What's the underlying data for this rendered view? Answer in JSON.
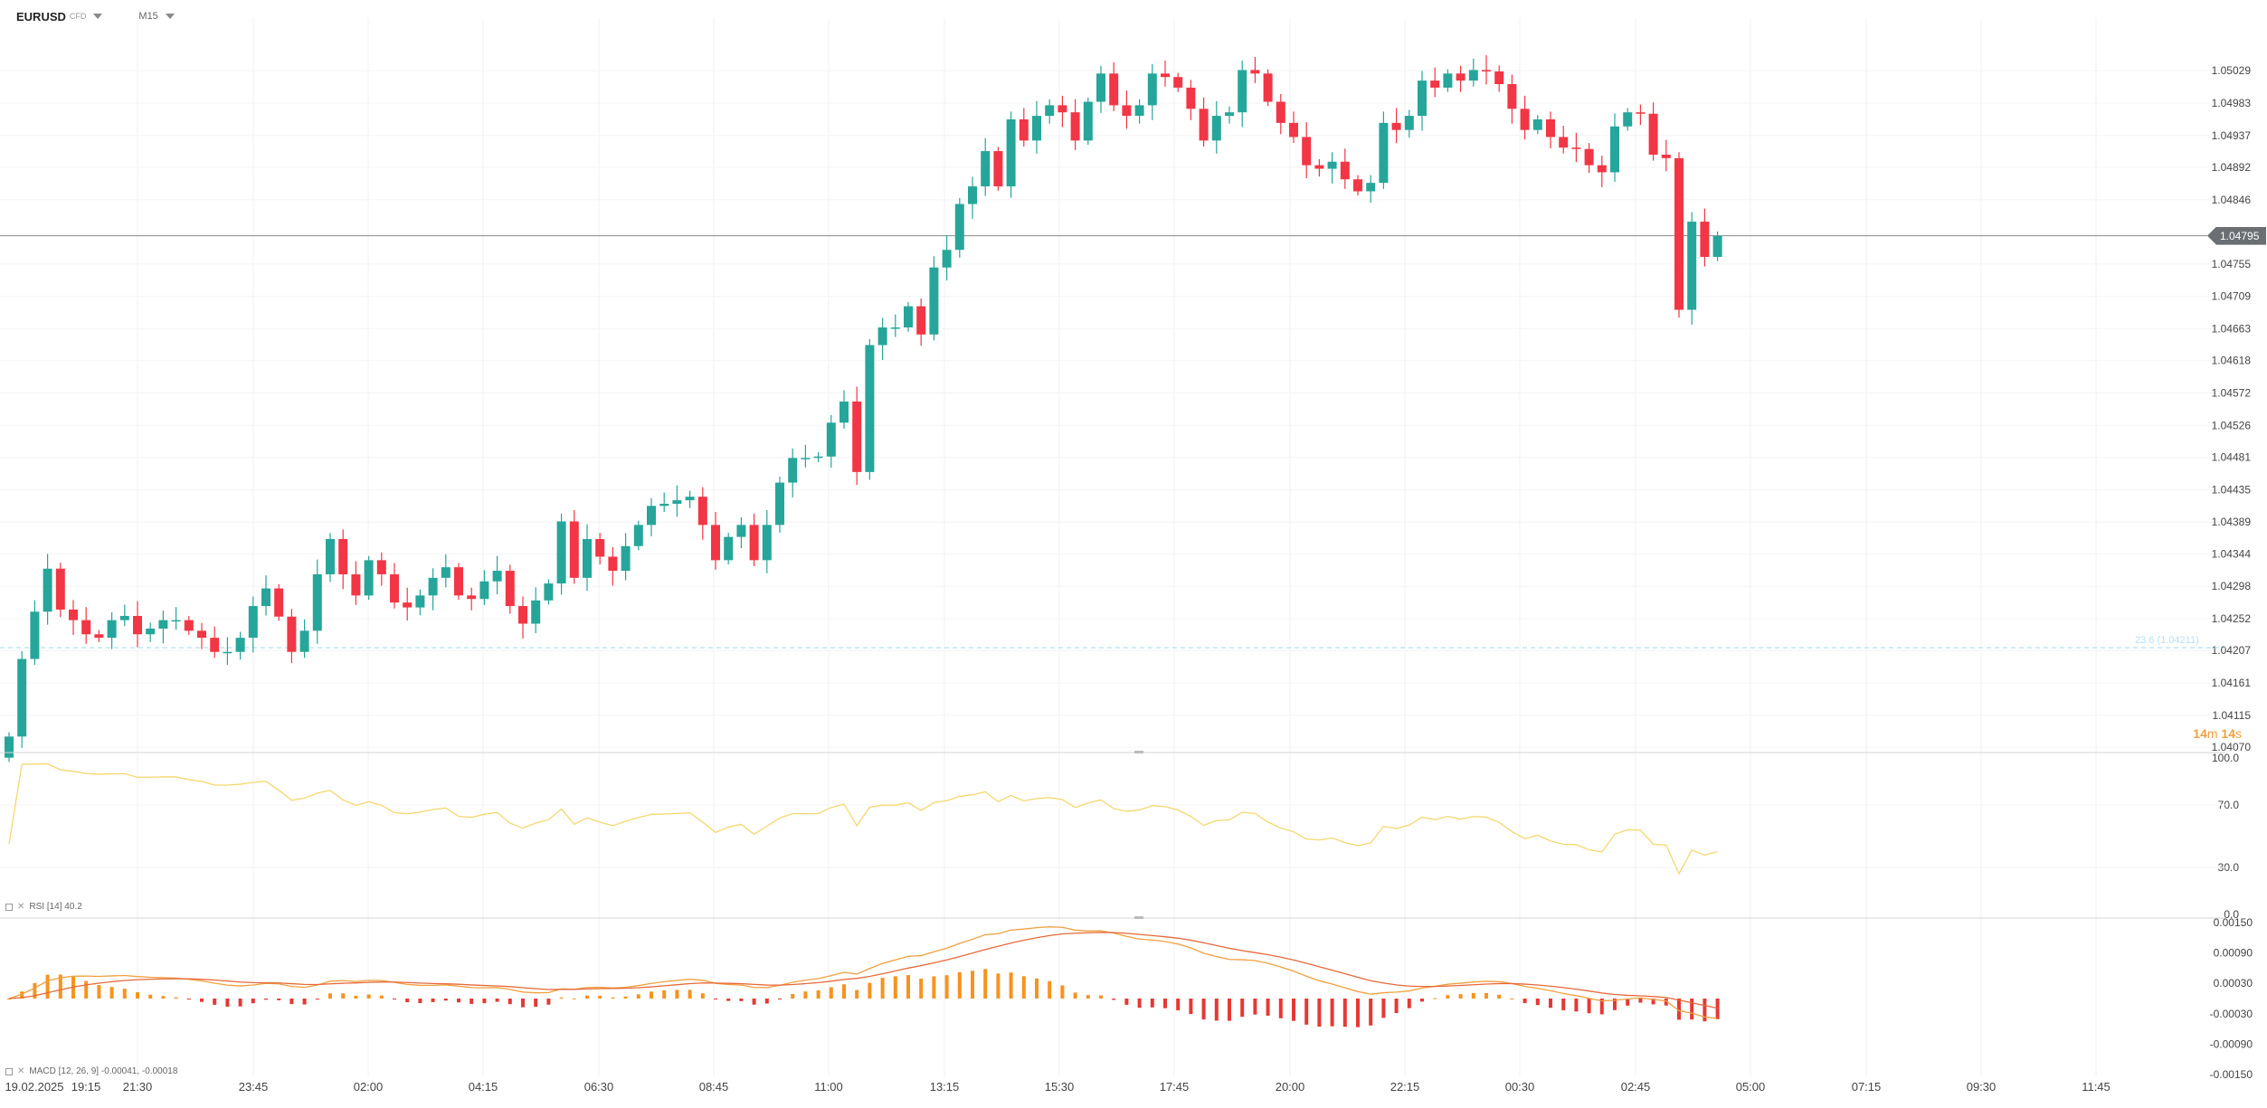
{
  "header": {
    "symbol": "EURUSD",
    "symbol_type": "CFD",
    "timeframe": "M15"
  },
  "price_axis": {
    "ticks": [
      "1.05029",
      "1.04983",
      "1.04937",
      "1.04892",
      "1.04846",
      "1.04755",
      "1.04709",
      "1.04663",
      "1.04618",
      "1.04572",
      "1.04526",
      "1.04481",
      "1.04435",
      "1.04389",
      "1.04344",
      "1.04298",
      "1.04252",
      "1.04207",
      "1.04161",
      "1.04115",
      "1.04070"
    ],
    "current_price": "1.04795",
    "fib_label": "23.6 (1.04211)",
    "countdown": {
      "min": "14",
      "min_unit": "m",
      "sec": "14",
      "sec_unit": "s"
    }
  },
  "rsi_panel": {
    "label": "RSI [14] 40.2",
    "ticks": [
      "100.0",
      "70.0",
      "30.0",
      "0.0"
    ]
  },
  "macd_panel": {
    "label": "MACD [12, 26, 9] -0.00041, -0.00018",
    "ticks": [
      "0.00150",
      "0.00090",
      "0.00030",
      "-0.00030",
      "-0.00090",
      "-0.00150"
    ]
  },
  "time_axis": {
    "labels": [
      "19.02.2025",
      "19:15",
      "21:30",
      "23:45",
      "02:00",
      "04:15",
      "06:30",
      "08:45",
      "11:00",
      "13:15",
      "15:30",
      "17:45",
      "20:00",
      "22:15",
      "00:30",
      "02:45",
      "05:00",
      "07:15",
      "09:30",
      "11:45"
    ]
  },
  "chart_data": {
    "type": "candlestick",
    "ylim": [
      1.0407,
      1.0506
    ],
    "candles_close": [
      1.04085,
      1.04195,
      1.04262,
      1.04323,
      1.04265,
      1.0425,
      1.0423,
      1.04225,
      1.0425,
      1.04256,
      1.0423,
      1.04238,
      1.0425,
      1.0425,
      1.04235,
      1.04225,
      1.04205,
      1.04205,
      1.04225,
      1.0427,
      1.04295,
      1.04255,
      1.04205,
      1.04235,
      1.04315,
      1.04365,
      1.04315,
      1.04285,
      1.04335,
      1.04315,
      1.04275,
      1.04268,
      1.04285,
      1.0431,
      1.04325,
      1.04285,
      1.0428,
      1.04305,
      1.0432,
      1.0427,
      1.04245,
      1.04278,
      1.04302,
      1.0439,
      1.0431,
      1.04365,
      1.0434,
      1.0432,
      1.04355,
      1.04385,
      1.04412,
      1.04415,
      1.0442,
      1.04425,
      1.04385,
      1.04335,
      1.04368,
      1.04385,
      1.04335,
      1.04385,
      1.04445,
      1.0448,
      1.0448,
      1.04482,
      1.0453,
      1.0456,
      1.0446,
      1.0464,
      1.04665,
      1.04665,
      1.04695,
      1.04655,
      1.0475,
      1.04775,
      1.0484,
      1.04865,
      1.04915,
      1.04865,
      1.0496,
      1.0493,
      1.04965,
      1.0498,
      1.0497,
      1.0493,
      1.04985,
      1.05025,
      1.0498,
      1.04965,
      1.0498,
      1.05025,
      1.0502,
      1.05005,
      1.04975,
      1.0493,
      1.04965,
      1.0497,
      1.0503,
      1.05025,
      1.04985,
      1.04955,
      1.04935,
      1.04895,
      1.0489,
      1.049,
      1.04875,
      1.04858,
      1.0487,
      1.04955,
      1.04945,
      1.04965,
      1.05015,
      1.05005,
      1.05025,
      1.05015,
      1.0503,
      1.05028,
      1.0501,
      1.04975,
      1.04945,
      1.0496,
      1.04935,
      1.0492,
      1.04918,
      1.04895,
      1.04885,
      1.0495,
      1.0497,
      1.04968,
      1.0491,
      1.04905,
      1.0469,
      1.04815,
      1.04765,
      1.04795
    ],
    "last_price": 1.04795,
    "fib_level": 1.04211,
    "rsi_last": 40.2,
    "macd_last": -0.00041,
    "signal_last": -0.00018
  },
  "colors": {
    "bull": "#26a69a",
    "bear": "#f23645",
    "rsi_line": "#f5d76e",
    "macd_line": "#f0a040",
    "signal_line": "#e66a3a",
    "hist_pos": "#f7931e",
    "hist_neg": "#e53935"
  }
}
